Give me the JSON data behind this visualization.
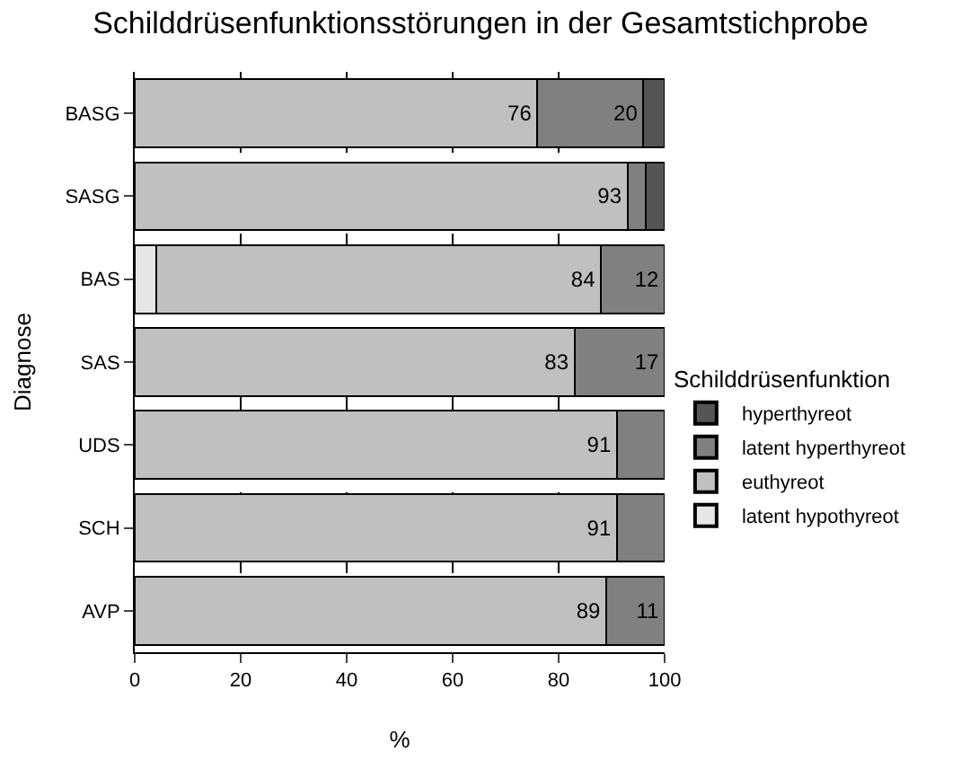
{
  "chart_data": {
    "type": "bar",
    "orientation": "horizontal",
    "stacked": true,
    "title": "Schilddrüsenfunktionsstörungen in der Gesamtstichprobe",
    "xlabel": "%",
    "ylabel": "Diagnose",
    "legend_title": "Schilddrüsenfunktion",
    "categories": [
      "BASG",
      "SASG",
      "BAS",
      "SAS",
      "UDS",
      "SCH",
      "AVP"
    ],
    "series": [
      {
        "name": "latent hypothyreot",
        "color": "#e6e6e6",
        "values": [
          null,
          null,
          4,
          null,
          null,
          null,
          null
        ],
        "value_labels": [
          null,
          null,
          null,
          null,
          null,
          null,
          null
        ]
      },
      {
        "name": "euthyreot",
        "color": "#c0c0c0",
        "values": [
          76,
          93,
          84,
          83,
          91,
          91,
          89
        ],
        "value_labels": [
          "76",
          "93",
          "84",
          "83",
          "91",
          "91",
          "89"
        ]
      },
      {
        "name": "latent hyperthyreot",
        "color": "#808080",
        "values": [
          20,
          3.5,
          12,
          17,
          9,
          9,
          11
        ],
        "value_labels": [
          "20",
          null,
          "12",
          "17",
          null,
          null,
          "11"
        ]
      },
      {
        "name": "hyperthyreot",
        "color": "#555555",
        "values": [
          4,
          3.5,
          null,
          null,
          null,
          null,
          null
        ],
        "value_labels": [
          null,
          null,
          null,
          null,
          null,
          null,
          null
        ]
      }
    ],
    "xlim": [
      0,
      100
    ],
    "xticks": [
      0,
      20,
      40,
      60,
      80,
      100
    ],
    "grid": "x",
    "legend": "right"
  }
}
